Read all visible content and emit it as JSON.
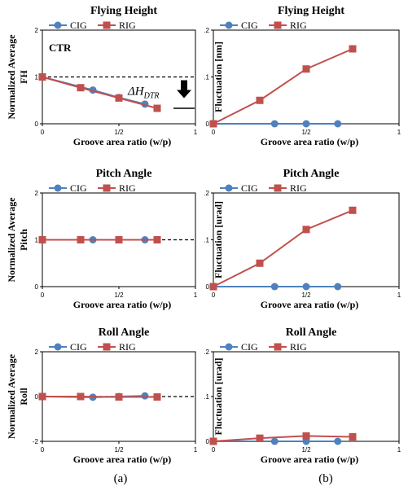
{
  "colors": {
    "CIG": "#4f81bd",
    "RIG": "#c0504d",
    "axis": "#000000",
    "reference": "#000000"
  },
  "legend": {
    "position": "top",
    "CIG": "CIG",
    "RIG": "RIG"
  },
  "captions": {
    "left": "(a)",
    "right": "(b)"
  },
  "chart_data": [
    {
      "id": "a1",
      "type": "line",
      "title": "Flying Height",
      "xlabel": "Groove area ratio (w/p)",
      "ylabel": [
        "Normalized Average",
        "FH"
      ],
      "xlim": [
        0,
        1
      ],
      "ylim": [
        0,
        2
      ],
      "x_ticks": [
        {
          "v": 0,
          "label": "0"
        },
        {
          "v": 0.5,
          "label": "1/2"
        },
        {
          "v": 1,
          "label": "1"
        }
      ],
      "y_ticks": [
        {
          "v": 0,
          "label": "0"
        },
        {
          "v": 1,
          "label": "1"
        },
        {
          "v": 2,
          "label": "2"
        }
      ],
      "reference_line": 1,
      "annotations": {
        "ctr": "CTR",
        "delta": "ΔH",
        "delta_sub": "DTR",
        "arrow": "down"
      },
      "series": [
        {
          "name": "CIG",
          "x": [
            0,
            0.33,
            0.5,
            0.67
          ],
          "y": [
            1.0,
            0.72,
            0.56,
            0.42
          ]
        },
        {
          "name": "RIG",
          "x": [
            0,
            0.25,
            0.5,
            0.75
          ],
          "y": [
            1.0,
            0.77,
            0.55,
            0.33
          ]
        }
      ]
    },
    {
      "id": "b1",
      "type": "line",
      "title": "Flying Height",
      "xlabel": "Groove area ratio (w/p)",
      "ylabel": [
        "Fluctuation [nm]"
      ],
      "xlim": [
        0,
        1
      ],
      "ylim": [
        0,
        0.2
      ],
      "x_ticks": [
        {
          "v": 0,
          "label": "0"
        },
        {
          "v": 0.5,
          "label": "1/2"
        },
        {
          "v": 1,
          "label": "1"
        }
      ],
      "y_ticks": [
        {
          "v": 0,
          "label": "0"
        },
        {
          "v": 0.1,
          "label": "0.1"
        },
        {
          "v": 0.2,
          "label": "0.2"
        }
      ],
      "series": [
        {
          "name": "CIG",
          "x": [
            0,
            0.33,
            0.5,
            0.67
          ],
          "y": [
            0,
            0,
            0,
            0
          ]
        },
        {
          "name": "RIG",
          "x": [
            0,
            0.25,
            0.5,
            0.75
          ],
          "y": [
            0,
            0.05,
            0.117,
            0.16
          ]
        }
      ]
    },
    {
      "id": "a2",
      "type": "line",
      "title": "Pitch Angle",
      "xlabel": "Groove area ratio (w/p)",
      "ylabel": [
        "Normalized Average",
        "Pitch"
      ],
      "xlim": [
        0,
        1
      ],
      "ylim": [
        0,
        2
      ],
      "x_ticks": [
        {
          "v": 0,
          "label": "0"
        },
        {
          "v": 0.5,
          "label": "1/2"
        },
        {
          "v": 1,
          "label": "1"
        }
      ],
      "y_ticks": [
        {
          "v": 0,
          "label": "0"
        },
        {
          "v": 1,
          "label": "1"
        },
        {
          "v": 2,
          "label": "2"
        }
      ],
      "reference_line": 1,
      "series": [
        {
          "name": "CIG",
          "x": [
            0,
            0.33,
            0.5,
            0.67
          ],
          "y": [
            1.0,
            1.0,
            1.0,
            1.0
          ]
        },
        {
          "name": "RIG",
          "x": [
            0,
            0.25,
            0.5,
            0.75
          ],
          "y": [
            1.0,
            1.0,
            1.0,
            1.0
          ]
        }
      ]
    },
    {
      "id": "b2",
      "type": "line",
      "title": "Pitch Angle",
      "xlabel": "Groove area ratio (w/p)",
      "ylabel": [
        "Fluctuation [urad]"
      ],
      "xlim": [
        0,
        1
      ],
      "ylim": [
        0,
        0.2
      ],
      "x_ticks": [
        {
          "v": 0,
          "label": "0"
        },
        {
          "v": 0.5,
          "label": "1/2"
        },
        {
          "v": 1,
          "label": "1"
        }
      ],
      "y_ticks": [
        {
          "v": 0,
          "label": "0"
        },
        {
          "v": 0.1,
          "label": "0.1"
        },
        {
          "v": 0.2,
          "label": "0.2"
        }
      ],
      "series": [
        {
          "name": "CIG",
          "x": [
            0,
            0.33,
            0.5,
            0.67
          ],
          "y": [
            0,
            0,
            0,
            0
          ]
        },
        {
          "name": "RIG",
          "x": [
            0,
            0.25,
            0.5,
            0.75
          ],
          "y": [
            0,
            0.05,
            0.122,
            0.163
          ]
        }
      ]
    },
    {
      "id": "a3",
      "type": "line",
      "title": "Roll Angle",
      "xlabel": "Groove area ratio (w/p)",
      "ylabel": [
        "Normalized Average",
        "Roll"
      ],
      "xlim": [
        0,
        1
      ],
      "ylim": [
        -2,
        2
      ],
      "x_ticks": [
        {
          "v": 0,
          "label": "0"
        },
        {
          "v": 0.5,
          "label": "1/2"
        },
        {
          "v": 1,
          "label": "1"
        }
      ],
      "y_ticks": [
        {
          "v": -2,
          "label": "-2"
        },
        {
          "v": 0,
          "label": "0"
        },
        {
          "v": 2,
          "label": "2"
        }
      ],
      "reference_line": 0,
      "series": [
        {
          "name": "CIG",
          "x": [
            0,
            0.33,
            0.5,
            0.67
          ],
          "y": [
            0,
            -0.03,
            0,
            0.03
          ]
        },
        {
          "name": "RIG",
          "x": [
            0,
            0.25,
            0.5,
            0.75
          ],
          "y": [
            0,
            0,
            -0.02,
            -0.02
          ]
        }
      ]
    },
    {
      "id": "b3",
      "type": "line",
      "title": "Roll Angle",
      "xlabel": "Groove area ratio (w/p)",
      "ylabel": [
        "Fluctuation [urad]"
      ],
      "xlim": [
        0,
        1
      ],
      "ylim": [
        0,
        0.2
      ],
      "x_ticks": [
        {
          "v": 0,
          "label": "0"
        },
        {
          "v": 0.5,
          "label": "1/2"
        },
        {
          "v": 1,
          "label": "1"
        }
      ],
      "y_ticks": [
        {
          "v": 0,
          "label": "0"
        },
        {
          "v": 0.1,
          "label": "0.1"
        },
        {
          "v": 0.2,
          "label": "0.2"
        }
      ],
      "series": [
        {
          "name": "CIG",
          "x": [
            0,
            0.33,
            0.5,
            0.67
          ],
          "y": [
            0,
            0,
            0,
            0
          ]
        },
        {
          "name": "RIG",
          "x": [
            0,
            0.25,
            0.5,
            0.75
          ],
          "y": [
            0,
            0.007,
            0.012,
            0.01
          ]
        }
      ]
    }
  ]
}
